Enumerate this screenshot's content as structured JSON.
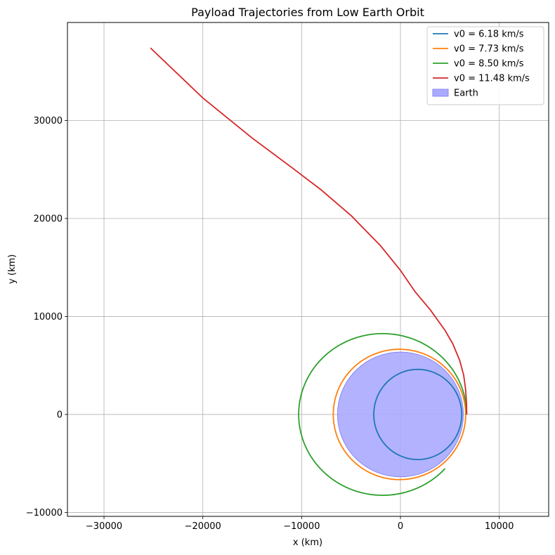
{
  "chart_data": {
    "type": "line",
    "title": "Payload Trajectories from Low Earth Orbit",
    "xlabel": "x (km)",
    "ylabel": "y (km)",
    "xlim": [
      -33700,
      15000
    ],
    "ylim": [
      -10400,
      40000
    ],
    "x_ticks": [
      -30000,
      -20000,
      -10000,
      0,
      10000
    ],
    "x_tick_labels": [
      "−30000",
      "−20000",
      "−10000",
      "0",
      "10000"
    ],
    "y_ticks": [
      -10000,
      0,
      10000,
      20000,
      30000
    ],
    "y_tick_labels": [
      "−10000",
      "0",
      "10000",
      "20000",
      "30000"
    ],
    "grid": true,
    "legend_position": "top-right",
    "earth": {
      "label": "Earth",
      "radius_km": 6371,
      "color": "#aaaaff"
    },
    "series": [
      {
        "name": "v0 = 6.18 km/s",
        "color": "#1f77b4",
        "kind": "ellipse",
        "ellipse": {
          "cx": 1750,
          "cy": 0,
          "rx": 4450,
          "ry": 4600,
          "start_deg": 0,
          "end_deg": 360
        }
      },
      {
        "name": "v0 = 7.73 km/s",
        "color": "#ff7f0e",
        "kind": "ellipse",
        "ellipse": {
          "cx": -100,
          "cy": 0,
          "rx": 6700,
          "ry": 6650,
          "start_deg": 0,
          "end_deg": 360
        }
      },
      {
        "name": "v0 = 8.50 km/s",
        "color": "#2ca02c",
        "kind": "ellipse",
        "ellipse": {
          "cx": -1800,
          "cy": 0,
          "rx": 8500,
          "ry": 8250,
          "start_deg": 0,
          "end_deg": 318
        }
      },
      {
        "name": "v0 = 11.48 km/s",
        "color": "#d62728",
        "kind": "polyline",
        "x": [
          6700,
          6690,
          6600,
          6400,
          6000,
          5300,
          4500,
          3000,
          1500,
          0,
          -2000,
          -5000,
          -8000,
          -11000,
          -15000,
          -20000,
          -25300
        ],
        "y": [
          0,
          1000,
          2500,
          4000,
          5500,
          7200,
          8600,
          10700,
          12500,
          14700,
          17200,
          20300,
          22900,
          25200,
          28200,
          32300,
          37400
        ]
      }
    ]
  }
}
